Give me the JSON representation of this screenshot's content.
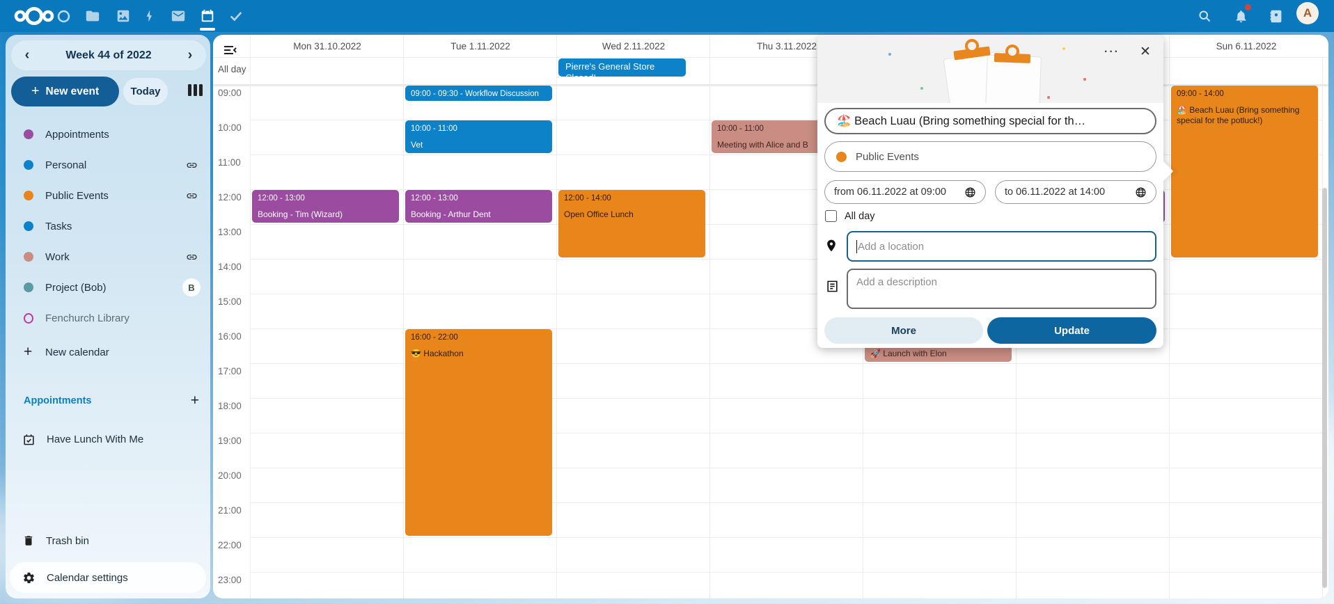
{
  "topbar": {
    "apps": [
      {
        "name": "dashboard"
      },
      {
        "name": "files"
      },
      {
        "name": "photos"
      },
      {
        "name": "activity"
      },
      {
        "name": "mail"
      },
      {
        "name": "calendar",
        "active": true
      },
      {
        "name": "tasks"
      }
    ],
    "avatar_letter": "A"
  },
  "sidebar": {
    "week_label": "Week 44 of 2022",
    "prev_label": "‹",
    "next_label": "›",
    "new_event_label": "New event",
    "today_label": "Today",
    "calendars": [
      {
        "name": "Appointments",
        "color": "#9b4ba0",
        "trail": "none"
      },
      {
        "name": "Personal",
        "color": "#0d82c8",
        "trail": "link"
      },
      {
        "name": "Public Events",
        "color": "#e8861c",
        "trail": "link"
      },
      {
        "name": "Tasks",
        "color": "#0d82c8",
        "trail": "none"
      },
      {
        "name": "Work",
        "color": "#c98d83",
        "trail": "link"
      },
      {
        "name": "Project (Bob)",
        "color": "#5a9aa2",
        "trail": "badge",
        "badge": "B"
      },
      {
        "name": "Fenchurch Library",
        "color": "#c0399b",
        "outline": true,
        "muted": true,
        "trail": "none"
      }
    ],
    "new_calendar_label": "New calendar",
    "appointments_heading": "Appointments",
    "appointment_items": [
      "Have Lunch With Me"
    ],
    "trash_label": "Trash bin",
    "settings_label": "Calendar settings"
  },
  "calendar": {
    "allday_label": "All day",
    "time_labels": [
      "09:00",
      "10:00",
      "11:00",
      "12:00",
      "13:00",
      "14:00",
      "15:00",
      "16:00",
      "17:00",
      "18:00",
      "19:00",
      "20:00",
      "21:00",
      "22:00",
      "23:00"
    ],
    "day_headers": [
      "Mon 31.10.2022",
      "Tue 1.11.2022",
      "Wed 2.11.2022",
      "Thu 3.11.2022",
      "",
      "",
      "Sun 6.11.2022"
    ],
    "allday_events": [
      {
        "day": 2,
        "title": "Pierre's General Store Closed!",
        "color": "blue",
        "width": 183
      }
    ],
    "events": [
      {
        "day": 0,
        "start": 12,
        "end": 13,
        "time_text": "12:00 - 13:00",
        "title": "Booking - Tim (Wizard)",
        "color": "purple"
      },
      {
        "day": 1,
        "start": 9,
        "end": 9.5,
        "single_line": "09:00 - 09:30 - Workflow Discussion",
        "color": "blue"
      },
      {
        "day": 1,
        "start": 10,
        "end": 11,
        "time_text": "10:00 - 11:00",
        "title": "Vet",
        "color": "blue"
      },
      {
        "day": 1,
        "start": 12,
        "end": 13,
        "time_text": "12:00 - 13:00",
        "title": "Booking - Arthur Dent",
        "color": "purple"
      },
      {
        "day": 1,
        "start": 16,
        "end": 22,
        "time_text": "16:00 - 22:00",
        "title": "😎 Hackathon",
        "color": "orange"
      },
      {
        "day": 2,
        "start": 12,
        "end": 14,
        "time_text": "12:00 - 14:00",
        "title": "Open Office Lunch",
        "color": "orange"
      },
      {
        "day": 3,
        "start": 10,
        "end": 11,
        "time_text": "10:00 - 11:00",
        "title": "Meeting with Alice and B",
        "color": "salmon"
      },
      {
        "day": 4,
        "start": 16,
        "end": 17,
        "time_text": "",
        "title": "🚀 Launch with Elon",
        "color": "salmon"
      },
      {
        "day": 5,
        "start": 12,
        "end": 13,
        "time_text": "",
        "title": "",
        "color": "purple"
      },
      {
        "day": 6,
        "start": 9,
        "end": 14,
        "time_text": "09:00 - 14:00",
        "title": "🏖️ Beach Luau (Bring something special for the potluck!)",
        "color": "orange"
      }
    ]
  },
  "popup": {
    "title_value": "🏖️ Beach Luau (Bring something special for th…",
    "calendar_select": "Public Events",
    "from_label": "from 06.11.2022 at 09:00",
    "to_label": "to 06.11.2022 at 14:00",
    "allday_label": "All day",
    "location_placeholder": "Add a location",
    "description_placeholder": "Add a description",
    "more_label": "More",
    "update_label": "Update",
    "dots_label": "···",
    "close_label": "✕"
  },
  "colors": {
    "blue": "#0d82c8",
    "purple": "#9b4ba0",
    "orange": "#e8861c",
    "salmon": "#c98d83",
    "topbar": "#0a78bd",
    "primary_button": "#135e97"
  }
}
